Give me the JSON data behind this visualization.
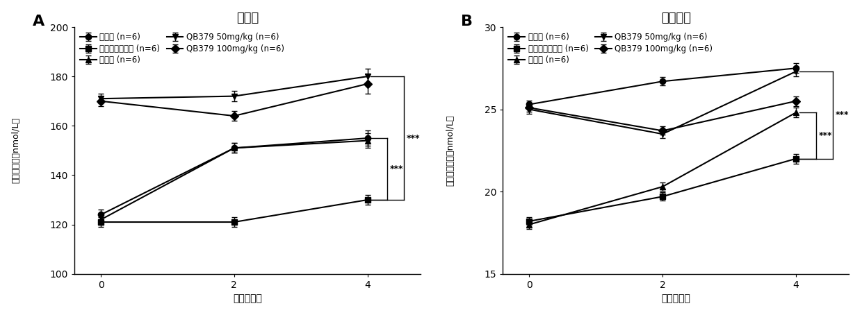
{
  "panel_A": {
    "title": "总睾酷",
    "ylabel": "总睾酷产量（nmol/L）",
    "xlabel": "时间（周）",
    "xticks": [
      0,
      2,
      4
    ],
    "ylim": [
      100,
      200
    ],
    "yticks": [
      100,
      120,
      140,
      160,
      180,
      200
    ],
    "series": [
      {
        "label": "正常组 (n=6)",
        "x": [
          0,
          2,
          4
        ],
        "y": [
          124,
          151,
          155
        ],
        "yerr": [
          2,
          2,
          3
        ],
        "marker": "o",
        "color": "#000000",
        "linewidth": 1.5
      },
      {
        "label": "环磷酰胺造模组 (n=6)",
        "x": [
          0,
          2,
          4
        ],
        "y": [
          121,
          121,
          130
        ],
        "yerr": [
          2,
          2,
          2
        ],
        "marker": "s",
        "color": "#000000",
        "linewidth": 1.5
      },
      {
        "label": "睾酷组 (n=6)",
        "x": [
          0,
          2,
          4
        ],
        "y": [
          122,
          151,
          154
        ],
        "yerr": [
          2,
          2,
          3
        ],
        "marker": "^",
        "color": "#000000",
        "linewidth": 1.5
      },
      {
        "label": "QB379 50mg/kg (n=6)",
        "x": [
          0,
          2,
          4
        ],
        "y": [
          171,
          172,
          180
        ],
        "yerr": [
          2,
          2,
          3
        ],
        "marker": "v",
        "color": "#000000",
        "linewidth": 1.5
      },
      {
        "label": "QB379 100mg/kg (n=6)",
        "x": [
          0,
          2,
          4
        ],
        "y": [
          170,
          164,
          177
        ],
        "yerr": [
          2,
          2,
          4
        ],
        "marker": "D",
        "color": "#000000",
        "linewidth": 1.5
      }
    ],
    "sig1_y1": 155,
    "sig1_y2": 130,
    "sig2_y1": 180,
    "sig2_y2": 130
  },
  "panel_B": {
    "title": "游离睾酷",
    "ylabel": "游离睾酷产量（nmol/L）",
    "xlabel": "时间（周）",
    "xticks": [
      0,
      2,
      4
    ],
    "ylim": [
      15,
      30
    ],
    "yticks": [
      15,
      20,
      25,
      30
    ],
    "series": [
      {
        "label": "正常组 (n=6)",
        "x": [
          0,
          2,
          4
        ],
        "y": [
          25.3,
          26.7,
          27.5
        ],
        "yerr": [
          0.25,
          0.25,
          0.3
        ],
        "marker": "o",
        "color": "#000000",
        "linewidth": 1.5
      },
      {
        "label": "环磷酰胺造模组 (n=6)",
        "x": [
          0,
          2,
          4
        ],
        "y": [
          18.2,
          19.7,
          22.0
        ],
        "yerr": [
          0.25,
          0.25,
          0.3
        ],
        "marker": "s",
        "color": "#000000",
        "linewidth": 1.5
      },
      {
        "label": "睾酷组 (n=6)",
        "x": [
          0,
          2,
          4
        ],
        "y": [
          18.0,
          20.3,
          24.8
        ],
        "yerr": [
          0.25,
          0.25,
          0.3
        ],
        "marker": "^",
        "color": "#000000",
        "linewidth": 1.5
      },
      {
        "label": "QB379 50mg/kg (n=6)",
        "x": [
          0,
          2,
          4
        ],
        "y": [
          25.0,
          23.5,
          27.3
        ],
        "yerr": [
          0.25,
          0.25,
          0.3
        ],
        "marker": "v",
        "color": "#000000",
        "linewidth": 1.5
      },
      {
        "label": "QB379 100mg/kg (n=6)",
        "x": [
          0,
          2,
          4
        ],
        "y": [
          25.1,
          23.7,
          25.5
        ],
        "yerr": [
          0.25,
          0.25,
          0.3
        ],
        "marker": "D",
        "color": "#000000",
        "linewidth": 1.5
      }
    ],
    "sig1_y1": 24.8,
    "sig1_y2": 22.0,
    "sig2_y1": 27.3,
    "sig2_y2": 22.0
  },
  "label_A": "A",
  "label_B": "B",
  "background_color": "#ffffff",
  "markersize": 6,
  "capsize": 3
}
